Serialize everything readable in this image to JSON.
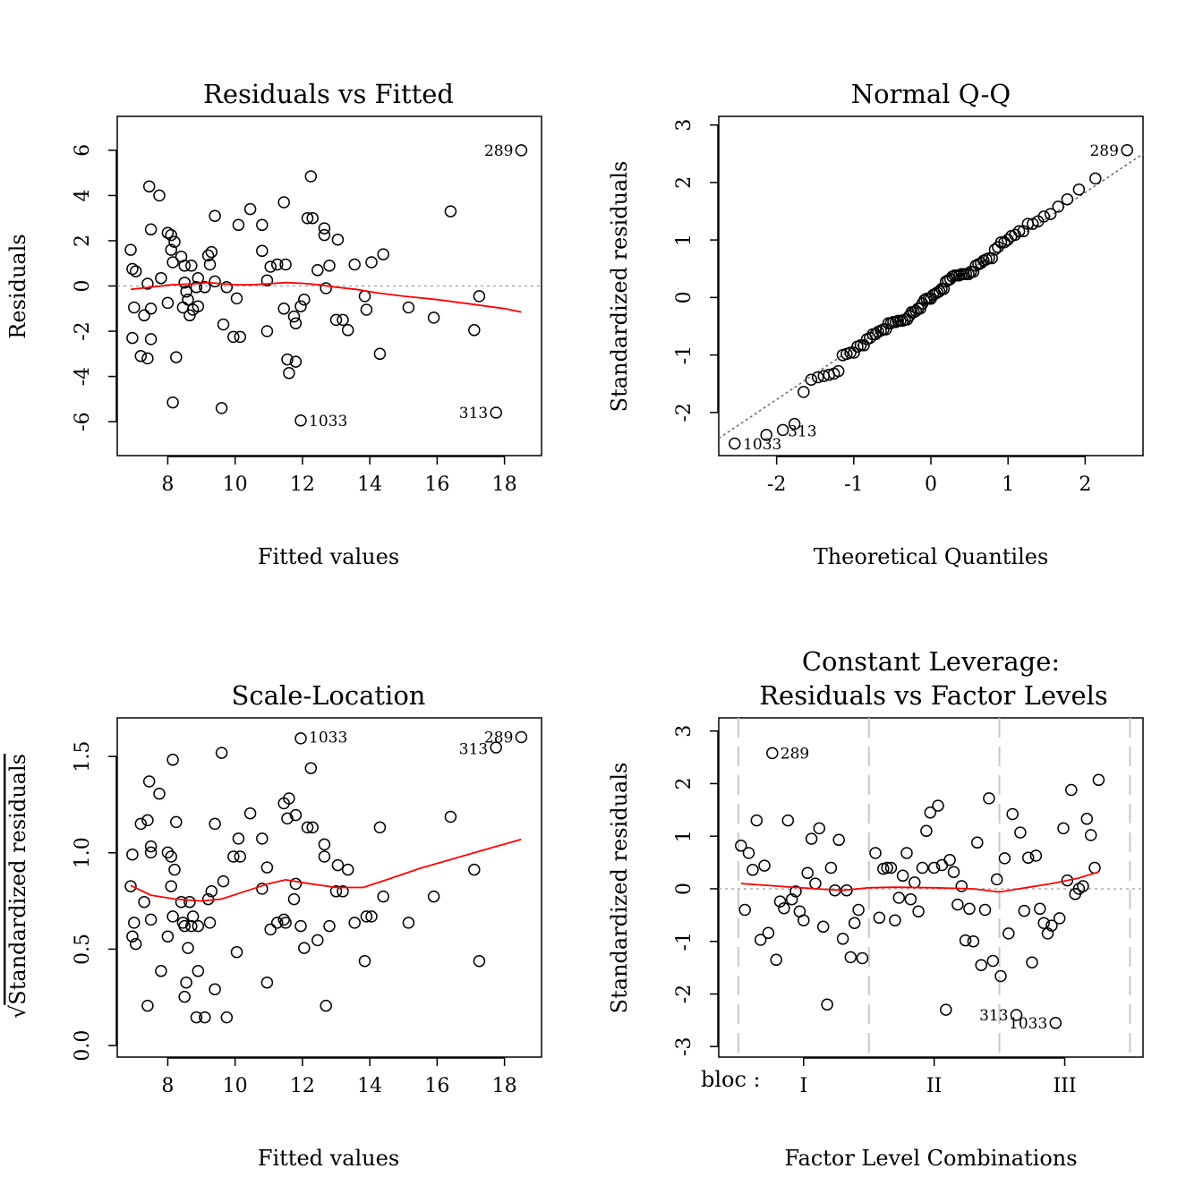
{
  "colors": {
    "points": "#000000",
    "smooth": "#ff0000",
    "reference": "#9e9e9e",
    "qqline": "#6a6a6a",
    "level_divider": "#c8c8c8"
  },
  "chart_data": [
    {
      "type": "scatter",
      "title": "Residuals vs Fitted",
      "xlabel": "Fitted values",
      "ylabel": "Residuals",
      "xlim": [
        6.5,
        19.1
      ],
      "ylim": [
        -7.5,
        7.5
      ],
      "xticks": [
        8,
        10,
        12,
        14,
        16,
        18
      ],
      "yticks": [
        -6,
        -4,
        -2,
        0,
        2,
        4,
        6
      ],
      "reference_line": 0,
      "points": [
        [
          6.9,
          1.6
        ],
        [
          6.95,
          0.75
        ],
        [
          7.05,
          0.65
        ],
        [
          7.0,
          -0.95
        ],
        [
          6.95,
          -2.3
        ],
        [
          7.2,
          -3.1
        ],
        [
          7.3,
          -1.3
        ],
        [
          7.4,
          -3.2
        ],
        [
          7.4,
          0.1
        ],
        [
          7.5,
          -1.0
        ],
        [
          7.5,
          -2.35
        ],
        [
          7.5,
          2.5
        ],
        [
          7.45,
          4.4
        ],
        [
          7.75,
          4.0
        ],
        [
          7.8,
          0.35
        ],
        [
          8.0,
          -0.75
        ],
        [
          8.0,
          2.35
        ],
        [
          8.1,
          1.6
        ],
        [
          8.1,
          2.25
        ],
        [
          8.15,
          1.05
        ],
        [
          8.2,
          1.95
        ],
        [
          8.25,
          -3.15
        ],
        [
          8.15,
          -5.15
        ],
        [
          8.4,
          1.3
        ],
        [
          8.45,
          -0.95
        ],
        [
          8.5,
          0.15
        ],
        [
          8.5,
          0.9
        ],
        [
          8.55,
          -0.25
        ],
        [
          8.6,
          -0.6
        ],
        [
          8.65,
          -1.3
        ],
        [
          8.7,
          0.9
        ],
        [
          8.75,
          -1.05
        ],
        [
          8.85,
          -0.05
        ],
        [
          8.9,
          -0.9
        ],
        [
          8.9,
          0.35
        ],
        [
          9.1,
          -0.05
        ],
        [
          9.2,
          1.35
        ],
        [
          9.25,
          0.95
        ],
        [
          9.3,
          1.5
        ],
        [
          9.4,
          0.2
        ],
        [
          9.4,
          3.1
        ],
        [
          9.6,
          -5.4
        ],
        [
          9.65,
          -1.7
        ],
        [
          9.75,
          -0.05
        ],
        [
          9.95,
          -2.25
        ],
        [
          10.05,
          -0.55
        ],
        [
          10.1,
          2.7
        ],
        [
          10.15,
          -2.25
        ],
        [
          10.45,
          3.4
        ],
        [
          10.8,
          2.7
        ],
        [
          10.8,
          1.55
        ],
        [
          10.95,
          -2.0
        ],
        [
          10.95,
          0.25
        ],
        [
          11.05,
          0.85
        ],
        [
          11.25,
          0.95
        ],
        [
          11.45,
          3.7
        ],
        [
          11.45,
          -1.0
        ],
        [
          11.5,
          0.95
        ],
        [
          11.55,
          -3.25
        ],
        [
          11.6,
          -3.85
        ],
        [
          11.75,
          -1.35
        ],
        [
          11.8,
          -1.65
        ],
        [
          11.8,
          -3.35
        ],
        [
          11.95,
          -0.9
        ],
        [
          11.95,
          -5.95
        ],
        [
          12.05,
          -0.6
        ],
        [
          12.15,
          3.0
        ],
        [
          12.25,
          4.85
        ],
        [
          12.3,
          3.0
        ],
        [
          12.45,
          0.7
        ],
        [
          12.65,
          2.55
        ],
        [
          12.65,
          2.25
        ],
        [
          12.7,
          -0.1
        ],
        [
          12.8,
          0.9
        ],
        [
          13.0,
          -1.5
        ],
        [
          13.05,
          2.05
        ],
        [
          13.2,
          -1.5
        ],
        [
          13.35,
          -1.95
        ],
        [
          13.55,
          0.95
        ],
        [
          13.85,
          -0.45
        ],
        [
          13.9,
          -1.05
        ],
        [
          14.05,
          1.05
        ],
        [
          14.3,
          -3.0
        ],
        [
          14.4,
          1.4
        ],
        [
          15.15,
          -0.95
        ],
        [
          15.9,
          -1.4
        ],
        [
          16.4,
          3.3
        ],
        [
          17.1,
          -1.95
        ],
        [
          17.25,
          -0.45
        ],
        [
          17.75,
          -5.6
        ],
        [
          18.5,
          6.0
        ]
      ],
      "smooth": [
        [
          6.9,
          -0.15
        ],
        [
          7.5,
          -0.05
        ],
        [
          8.1,
          0.05
        ],
        [
          8.8,
          0.1
        ],
        [
          9.2,
          0.15
        ],
        [
          9.6,
          0.1
        ],
        [
          10.0,
          0.05
        ],
        [
          10.5,
          0.05
        ],
        [
          11.0,
          0.1
        ],
        [
          11.5,
          0.15
        ],
        [
          12.0,
          0.12
        ],
        [
          12.5,
          0.05
        ],
        [
          13.0,
          -0.05
        ],
        [
          13.6,
          -0.15
        ],
        [
          14.2,
          -0.3
        ],
        [
          15.0,
          -0.45
        ],
        [
          16.0,
          -0.6
        ],
        [
          17.0,
          -0.8
        ],
        [
          18.0,
          -1.0
        ],
        [
          18.5,
          -1.15
        ]
      ],
      "labels": [
        {
          "text": "289",
          "at": [
            18.5,
            6.0
          ],
          "side": "left"
        },
        {
          "text": "1033",
          "at": [
            11.95,
            -5.95
          ],
          "side": "right"
        },
        {
          "text": "313",
          "at": [
            17.75,
            -5.6
          ],
          "side": "left"
        }
      ]
    },
    {
      "type": "scatter",
      "title": "Normal Q-Q",
      "xlabel": "Theoretical Quantiles",
      "ylabel": "Standardized residuals",
      "xlim": [
        -2.75,
        2.75
      ],
      "ylim": [
        -2.75,
        3.15
      ],
      "xticks": [
        -2,
        -1,
        0,
        1,
        2
      ],
      "yticks": [
        -2,
        -1,
        0,
        1,
        2,
        3
      ],
      "qq_line": [
        [
          -2.75,
          -2.45
        ],
        [
          2.75,
          2.5
        ]
      ],
      "labels": [
        {
          "text": "289",
          "at": [
            2.54,
            2.56
          ],
          "side": "left"
        },
        {
          "text": "1033",
          "at": [
            -2.54,
            -2.55
          ],
          "side": "right"
        },
        {
          "text": "313",
          "at": [
            -1.96,
            -2.32
          ],
          "side": "right"
        }
      ]
    },
    {
      "type": "scatter",
      "title": "Scale-Location",
      "xlabel": "Fitted values",
      "ylabel": "Standardized residuals",
      "ylabel_prefix": "√",
      "xlim": [
        6.5,
        19.1
      ],
      "ylim": [
        -0.06,
        1.7
      ],
      "xticks": [
        8,
        10,
        12,
        14,
        16,
        18
      ],
      "yticks": [
        0.0,
        0.5,
        1.0,
        1.5
      ],
      "smooth": [
        [
          6.9,
          0.83
        ],
        [
          7.5,
          0.78
        ],
        [
          8.2,
          0.76
        ],
        [
          9.0,
          0.75
        ],
        [
          9.6,
          0.76
        ],
        [
          10.3,
          0.8
        ],
        [
          11.0,
          0.84
        ],
        [
          11.5,
          0.86
        ],
        [
          12.2,
          0.84
        ],
        [
          13.0,
          0.82
        ],
        [
          13.8,
          0.82
        ],
        [
          14.5,
          0.86
        ],
        [
          15.5,
          0.92
        ],
        [
          16.5,
          0.97
        ],
        [
          17.5,
          1.02
        ],
        [
          18.5,
          1.07
        ]
      ],
      "labels": [
        {
          "text": "289",
          "at": [
            18.5,
            1.6
          ],
          "side": "left"
        },
        {
          "text": "1033",
          "at": [
            11.95,
            1.6
          ],
          "side": "right"
        },
        {
          "text": "313",
          "at": [
            17.75,
            1.54
          ],
          "side": "left"
        }
      ]
    },
    {
      "type": "scatter",
      "title": "Constant Leverage:",
      "subtitle": "Residuals vs Factor Levels",
      "xlabel": "Factor Level Combinations",
      "ylabel": "Standardized residuals",
      "factor_name": "bloc :",
      "levels": [
        "I",
        "II",
        "III"
      ],
      "xlim": [
        0.35,
        3.6
      ],
      "ylim": [
        -3.2,
        3.25
      ],
      "yticks": [
        -3,
        -2,
        -1,
        0,
        1,
        2,
        3
      ],
      "level_bounds": [
        0.5,
        1.5,
        2.5,
        3.5
      ],
      "reference_line": 0,
      "points": [
        [
          0.52,
          0.82
        ],
        [
          0.55,
          -0.4
        ],
        [
          0.58,
          0.68
        ],
        [
          0.61,
          0.36
        ],
        [
          0.64,
          1.3
        ],
        [
          0.67,
          -0.97
        ],
        [
          0.7,
          0.44
        ],
        [
          0.73,
          -0.84
        ],
        [
          0.76,
          2.58
        ],
        [
          0.79,
          -1.35
        ],
        [
          0.82,
          -0.24
        ],
        [
          0.85,
          -0.37
        ],
        [
          0.88,
          1.3
        ],
        [
          0.91,
          -0.2
        ],
        [
          0.94,
          -0.05
        ],
        [
          0.97,
          -0.43
        ],
        [
          1.0,
          -0.6
        ],
        [
          1.03,
          0.3
        ],
        [
          1.06,
          0.95
        ],
        [
          1.09,
          0.1
        ],
        [
          1.12,
          1.15
        ],
        [
          1.15,
          -0.72
        ],
        [
          1.18,
          -2.2
        ],
        [
          1.21,
          0.4
        ],
        [
          1.24,
          -0.03
        ],
        [
          1.27,
          0.93
        ],
        [
          1.3,
          -0.95
        ],
        [
          1.33,
          -0.03
        ],
        [
          1.36,
          -1.3
        ],
        [
          1.39,
          -0.65
        ],
        [
          1.42,
          -0.4
        ],
        [
          1.45,
          -1.32
        ],
        [
          1.55,
          0.68
        ],
        [
          1.58,
          -0.55
        ],
        [
          1.61,
          0.38
        ],
        [
          1.64,
          0.4
        ],
        [
          1.67,
          0.4
        ],
        [
          1.7,
          -0.6
        ],
        [
          1.73,
          -0.17
        ],
        [
          1.76,
          0.25
        ],
        [
          1.79,
          0.68
        ],
        [
          1.82,
          -0.2
        ],
        [
          1.85,
          0.12
        ],
        [
          1.88,
          -0.43
        ],
        [
          1.91,
          0.4
        ],
        [
          1.94,
          1.1
        ],
        [
          1.97,
          1.45
        ],
        [
          2.0,
          0.4
        ],
        [
          2.03,
          1.58
        ],
        [
          2.06,
          0.45
        ],
        [
          2.09,
          -2.3
        ],
        [
          2.12,
          0.55
        ],
        [
          2.15,
          0.32
        ],
        [
          2.18,
          -0.3
        ],
        [
          2.21,
          0.05
        ],
        [
          2.24,
          -0.98
        ],
        [
          2.27,
          -0.38
        ],
        [
          2.3,
          -1.0
        ],
        [
          2.33,
          0.88
        ],
        [
          2.36,
          -1.45
        ],
        [
          2.39,
          -0.4
        ],
        [
          2.42,
          1.72
        ],
        [
          2.45,
          -1.37
        ],
        [
          2.48,
          0.18
        ],
        [
          2.51,
          -1.66
        ],
        [
          2.54,
          0.58
        ],
        [
          2.57,
          -0.85
        ],
        [
          2.6,
          1.42
        ],
        [
          2.63,
          -2.4
        ],
        [
          2.66,
          1.07
        ],
        [
          2.69,
          -0.42
        ],
        [
          2.72,
          0.59
        ],
        [
          2.75,
          -1.4
        ],
        [
          2.78,
          0.63
        ],
        [
          2.81,
          -0.38
        ],
        [
          2.84,
          -0.65
        ],
        [
          2.87,
          -0.85
        ],
        [
          2.9,
          -0.7
        ],
        [
          2.93,
          -2.55
        ],
        [
          2.96,
          -0.56
        ],
        [
          2.99,
          1.15
        ],
        [
          3.02,
          0.16
        ],
        [
          3.05,
          1.88
        ],
        [
          3.08,
          -0.1
        ],
        [
          3.11,
          0.0
        ],
        [
          3.14,
          0.05
        ],
        [
          3.17,
          1.33
        ],
        [
          3.2,
          1.02
        ],
        [
          3.23,
          0.4
        ],
        [
          3.26,
          2.07
        ]
      ],
      "smooth": [
        [
          0.52,
          0.1
        ],
        [
          0.8,
          0.05
        ],
        [
          1.1,
          0.0
        ],
        [
          1.3,
          -0.03
        ],
        [
          1.5,
          0.02
        ],
        [
          1.7,
          0.03
        ],
        [
          2.0,
          0.02
        ],
        [
          2.3,
          0.0
        ],
        [
          2.5,
          -0.06
        ],
        [
          2.7,
          0.02
        ],
        [
          2.9,
          0.1
        ],
        [
          3.1,
          0.2
        ],
        [
          3.26,
          0.32
        ]
      ],
      "labels": [
        {
          "text": "289",
          "at": [
            0.76,
            2.58
          ],
          "side": "right"
        },
        {
          "text": "313",
          "at": [
            2.63,
            -2.4
          ],
          "side": "left"
        },
        {
          "text": "1033",
          "at": [
            2.93,
            -2.55
          ],
          "side": "left"
        }
      ]
    }
  ]
}
